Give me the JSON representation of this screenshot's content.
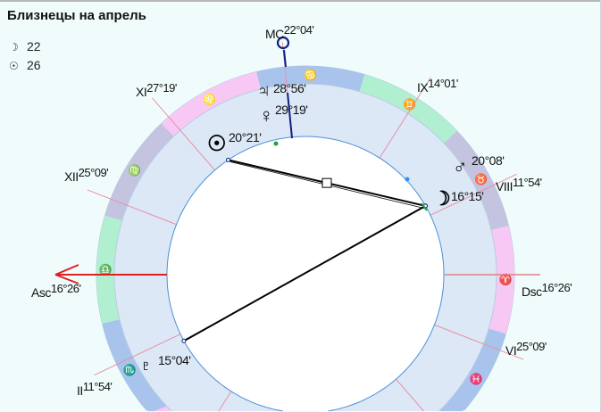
{
  "title": "Близнецы на апрель",
  "legend": [
    {
      "icon": "moon-icon",
      "glyph": "☽",
      "value": "22"
    },
    {
      "icon": "sun-icon",
      "glyph": "☉",
      "value": "26"
    }
  ],
  "chart": {
    "ascendant_longitude": 196.43,
    "sign_colors": {
      "fire": "#f8c8f4",
      "earth": "#c4c4e0",
      "air": "#b0f0d0",
      "water": "#a8c4ec"
    },
    "sign_glyphs": [
      "♈",
      "♉",
      "♊",
      "♋",
      "♌",
      "♍",
      "♎",
      "♏",
      "♐",
      "♑",
      "♒",
      "♓"
    ],
    "house_cusps": [
      196.43,
      221.9,
      254.02,
      292.07,
      327.32,
      355.15,
      16.43,
      41.9,
      74.02,
      112.07,
      147.32,
      175.15
    ],
    "aspects": [
      {
        "from": "Sun",
        "to": "Moon",
        "type": "square"
      },
      {
        "from": "Moon",
        "to": "Pluto",
        "type": "opposition"
      }
    ],
    "planet_longitudes": {
      "Sun": 140.35,
      "Moon": 46.25,
      "Mars": 50.13,
      "Venus": 119.32,
      "Jupiter": 118.93,
      "Pluto": 225.07
    }
  },
  "labels": {
    "mc": {
      "name": "MC",
      "deg": "22°04'"
    },
    "asc": {
      "name": "Asc",
      "deg": "16°26'"
    },
    "dsc": {
      "name": "Dsc",
      "deg": "16°26'"
    },
    "house_xi": {
      "name": "XI",
      "deg": "27°19'"
    },
    "house_xii": {
      "name": "XII",
      "deg": "25°09'"
    },
    "house_ix": {
      "name": "IX",
      "deg": "14°01'"
    },
    "house_viii": {
      "name": "VIII",
      "deg": "11°54'"
    },
    "house_vi": {
      "name": "VI",
      "deg": "25°09'"
    },
    "house_ii": {
      "name": "II",
      "deg": "11°54'"
    }
  },
  "planets": {
    "jupiter": {
      "glyph": "♃",
      "deg": "28°56'"
    },
    "venus": {
      "glyph": "♀",
      "deg": "29°19'"
    },
    "sun": {
      "glyph": "☉",
      "deg": "20°21'"
    },
    "mars": {
      "glyph": "♂",
      "deg": "20°08'"
    },
    "moon": {
      "glyph": "☽",
      "deg": "16°15'"
    },
    "pluto": {
      "glyph": "♇",
      "deg": "15°04'"
    }
  }
}
